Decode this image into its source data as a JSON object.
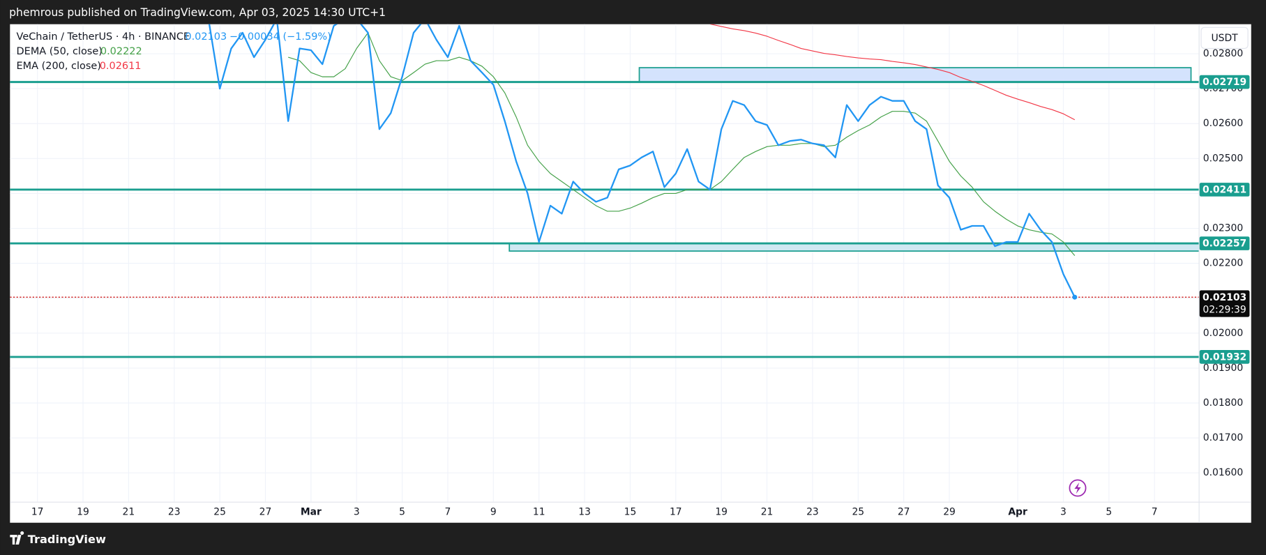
{
  "header": {
    "text": "phemrous published on TradingView.com, Apr 03, 2025 14:30 UTC+1"
  },
  "footer": {
    "brand": "TradingView"
  },
  "chart_data": {
    "type": "line",
    "yaxis_label": "USDT",
    "change": "−0.00034 (−1.59%)",
    "last_price": 0.02103,
    "countdown": "02:29:39",
    "categories": [
      null,
      null,
      "17",
      null,
      null,
      null,
      "19",
      null,
      null,
      null,
      "21",
      null,
      null,
      null,
      "23",
      null,
      null,
      null,
      "25",
      null,
      null,
      null,
      "27",
      null,
      null,
      null,
      "Mar",
      null,
      null,
      null,
      "3",
      null,
      null,
      null,
      "5",
      null,
      null,
      null,
      "7",
      null,
      null,
      null,
      "9",
      null,
      null,
      null,
      "11",
      null,
      null,
      null,
      "13",
      null,
      null,
      null,
      "15",
      null,
      null,
      null,
      "17",
      null,
      null,
      null,
      "19",
      null,
      null,
      null,
      "21",
      null,
      null,
      null,
      "23",
      null,
      null,
      null,
      "25",
      null,
      null,
      null,
      "27",
      null,
      null,
      null,
      "29",
      null,
      null,
      null,
      null,
      null,
      "Apr",
      null,
      null,
      null,
      "3",
      null,
      null,
      null,
      "5",
      null,
      null,
      null,
      "7",
      null,
      null,
      null,
      null
    ],
    "series": [
      {
        "name": "VeChain / TetherUS · 4h · BINANCE",
        "color": "#2196f3",
        "last": 0.02103,
        "values": [
          null,
          null,
          null,
          null,
          null,
          null,
          null,
          null,
          null,
          null,
          null,
          null,
          null,
          null,
          null,
          null,
          null,
          0.029,
          0.027,
          0.02815,
          0.0286,
          0.0279,
          0.0284,
          0.029,
          0.02607,
          0.02815,
          0.0281,
          0.0277,
          0.0288,
          0.029,
          0.029,
          0.0286,
          0.02584,
          0.0263,
          0.02734,
          0.0286,
          0.029,
          0.0284,
          0.0279,
          0.0288,
          0.0278,
          0.02746,
          0.02711,
          0.02607,
          0.02492,
          0.024,
          0.02261,
          0.02365,
          0.02342,
          0.02434,
          0.024,
          0.02376,
          0.02388,
          0.02469,
          0.0248,
          0.02503,
          0.0252,
          0.02418,
          0.02457,
          0.02527,
          0.02434,
          0.02411,
          0.02584,
          0.02665,
          0.02653,
          0.02607,
          0.02596,
          0.02538,
          0.0255,
          0.02554,
          0.02543,
          0.02538,
          0.02503,
          0.02653,
          0.02607,
          0.02653,
          0.02677,
          0.02665,
          0.02665,
          0.02607,
          0.02584,
          0.02423,
          0.02388,
          0.02296,
          0.02307,
          0.02307,
          0.02249,
          0.02261,
          0.02261,
          0.02342,
          0.02296,
          0.02261,
          0.02169,
          0.02103,
          null,
          null,
          null,
          null,
          null,
          null,
          null,
          null,
          null,
          null,
          null
        ]
      },
      {
        "name": "DEMA (50, close)",
        "color": "#43a047",
        "last": 0.02222,
        "values": [
          null,
          null,
          null,
          null,
          null,
          null,
          null,
          null,
          null,
          null,
          null,
          null,
          null,
          null,
          null,
          null,
          null,
          null,
          null,
          null,
          null,
          null,
          null,
          null,
          0.0279,
          0.0278,
          0.02746,
          0.02734,
          0.02734,
          0.02757,
          0.02815,
          0.0286,
          0.0278,
          0.02734,
          0.02723,
          0.02746,
          0.0277,
          0.0278,
          0.0278,
          0.0279,
          0.0278,
          0.02764,
          0.02734,
          0.02688,
          0.02619,
          0.02538,
          0.02492,
          0.02457,
          0.02434,
          0.02411,
          0.02388,
          0.02365,
          0.02349,
          0.02349,
          0.02358,
          0.02372,
          0.02388,
          0.024,
          0.024,
          0.02411,
          0.02411,
          0.02411,
          0.02434,
          0.02469,
          0.02503,
          0.0252,
          0.02534,
          0.02538,
          0.02538,
          0.02543,
          0.02543,
          0.02534,
          0.02538,
          0.02561,
          0.0258,
          0.02596,
          0.02619,
          0.02635,
          0.02635,
          0.0263,
          0.02607,
          0.0255,
          0.02492,
          0.0245,
          0.02418,
          0.02376,
          0.02349,
          0.02326,
          0.02307,
          0.02296,
          0.02289,
          0.02284,
          0.02261,
          0.02222,
          null,
          null,
          null,
          null,
          null,
          null,
          null,
          null,
          null,
          null,
          null
        ]
      },
      {
        "name": "EMA (200, close)",
        "color": "#f23645",
        "last": 0.02611,
        "values": [
          null,
          null,
          null,
          null,
          null,
          null,
          null,
          null,
          null,
          null,
          null,
          null,
          null,
          null,
          null,
          null,
          null,
          null,
          null,
          null,
          null,
          null,
          null,
          null,
          null,
          null,
          null,
          null,
          null,
          null,
          null,
          null,
          null,
          null,
          null,
          null,
          null,
          null,
          null,
          null,
          null,
          null,
          null,
          null,
          null,
          null,
          null,
          null,
          null,
          null,
          null,
          null,
          null,
          null,
          null,
          null,
          null,
          null,
          null,
          null,
          null,
          0.02885,
          0.02878,
          0.02871,
          0.02866,
          0.02859,
          0.0285,
          0.02838,
          0.02827,
          0.02815,
          0.02808,
          0.02801,
          0.02797,
          0.02792,
          0.02788,
          0.02785,
          0.02783,
          0.02778,
          0.02774,
          0.02769,
          0.02762,
          0.02755,
          0.02746,
          0.02732,
          0.02721,
          0.02709,
          0.02695,
          0.02681,
          0.0267,
          0.0266,
          0.02649,
          0.0264,
          0.02628,
          0.02611,
          null,
          null,
          null,
          null,
          null,
          null,
          null,
          null,
          null,
          null,
          null
        ]
      }
    ],
    "levels": [
      0.02719,
      0.02411,
      0.02257,
      0.01932
    ],
    "level_color": "#1a9e8f",
    "zones": [
      {
        "from": 0.02719,
        "to": 0.0276,
        "start_index": 54.8,
        "end_index": 103.2,
        "color": "#d4e3fd"
      },
      {
        "from": 0.02235,
        "to": 0.02257,
        "start_index": 43.4,
        "end_index": 105,
        "color": "#cfe8f2"
      }
    ],
    "ylim": [
      0.015173,
      0.028845
    ],
    "yticks": [
      {
        "value": 0.016,
        "label": "0.01600"
      },
      {
        "value": 0.017,
        "label": "0.01700"
      },
      {
        "value": 0.018,
        "label": "0.01800"
      },
      {
        "value": 0.019,
        "label": "0.01900"
      },
      {
        "value": 0.02,
        "label": "0.02000"
      },
      {
        "value": 0.021,
        "label": "0.02100"
      },
      {
        "value": 0.022,
        "label": "0.02200"
      },
      {
        "value": 0.023,
        "label": "0.02300"
      },
      {
        "value": 0.024,
        "label": "0.02400"
      },
      {
        "value": 0.025,
        "label": "0.02500"
      },
      {
        "value": 0.026,
        "label": "0.02600"
      },
      {
        "value": 0.027,
        "label": "0.02700"
      },
      {
        "value": 0.028,
        "label": "0.02800"
      }
    ],
    "grid": true
  }
}
